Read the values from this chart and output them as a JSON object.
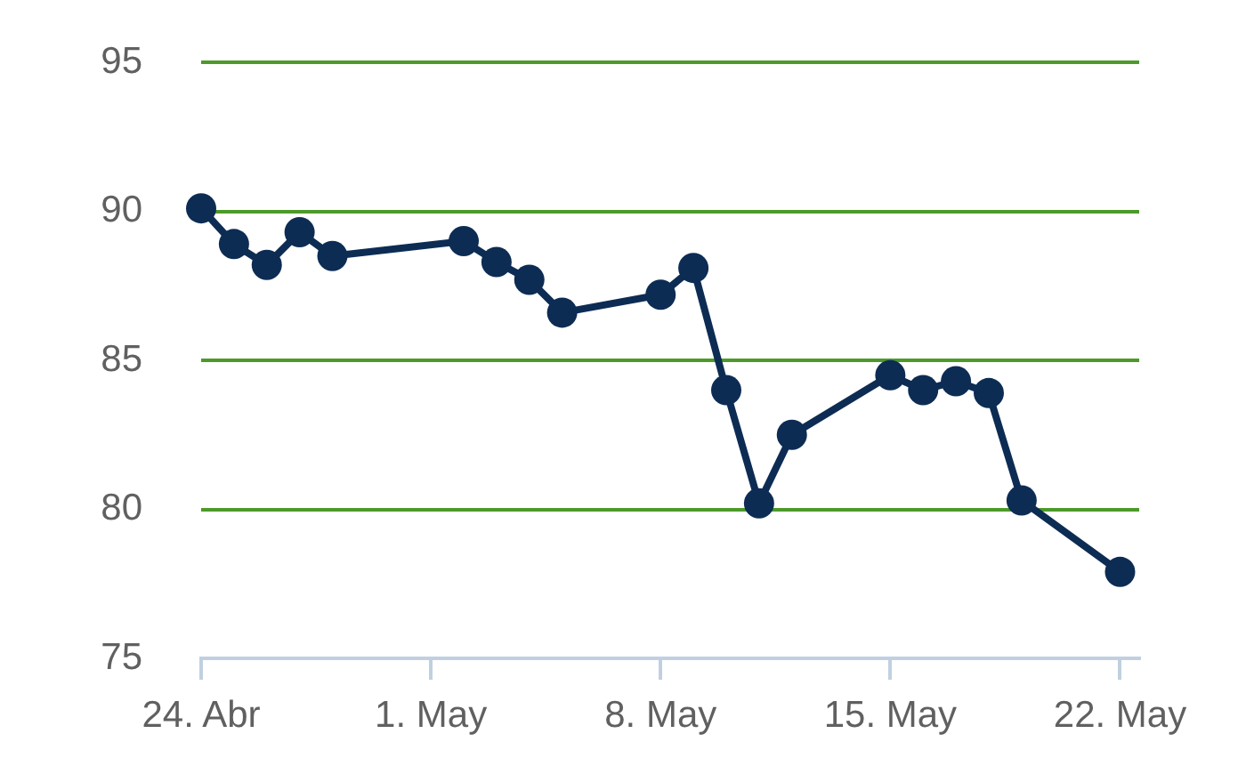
{
  "chart_data": {
    "type": "line",
    "x": [
      "--04-24",
      "--04-25",
      "--04-26",
      "--04-27",
      "--04-28",
      "--05-02",
      "--05-03",
      "--05-04",
      "--05-05",
      "--05-08",
      "--05-09",
      "--05-10",
      "--05-11",
      "--05-12",
      "--05-15",
      "--05-16",
      "--05-17",
      "--05-18",
      "--05-19",
      "--05-22"
    ],
    "series": [
      {
        "color": "#0d2c54",
        "values": [
          90.1,
          88.9,
          88.2,
          89.3,
          88.5,
          89.0,
          88.3,
          87.7,
          86.6,
          87.2,
          88.1,
          84.0,
          80.2,
          82.5,
          84.5,
          84.0,
          84.3,
          83.9,
          80.3,
          77.9
        ]
      }
    ],
    "xlim": [
      "--04-24",
      "--05-22T14:00"
    ],
    "xticks": [
      {
        "value": "--04-24",
        "label": "24. Abr"
      },
      {
        "value": "--05-01",
        "label": "1. May"
      },
      {
        "value": "--05-08",
        "label": "8. May"
      },
      {
        "value": "--05-15",
        "label": "15. May"
      },
      {
        "value": "--05-22",
        "label": "22. May"
      }
    ],
    "ylim": [
      75,
      95
    ],
    "yticks": [
      75,
      80,
      85,
      90,
      95
    ],
    "grid": "y",
    "legend": false,
    "marker": "circle",
    "line_style": "solid"
  }
}
